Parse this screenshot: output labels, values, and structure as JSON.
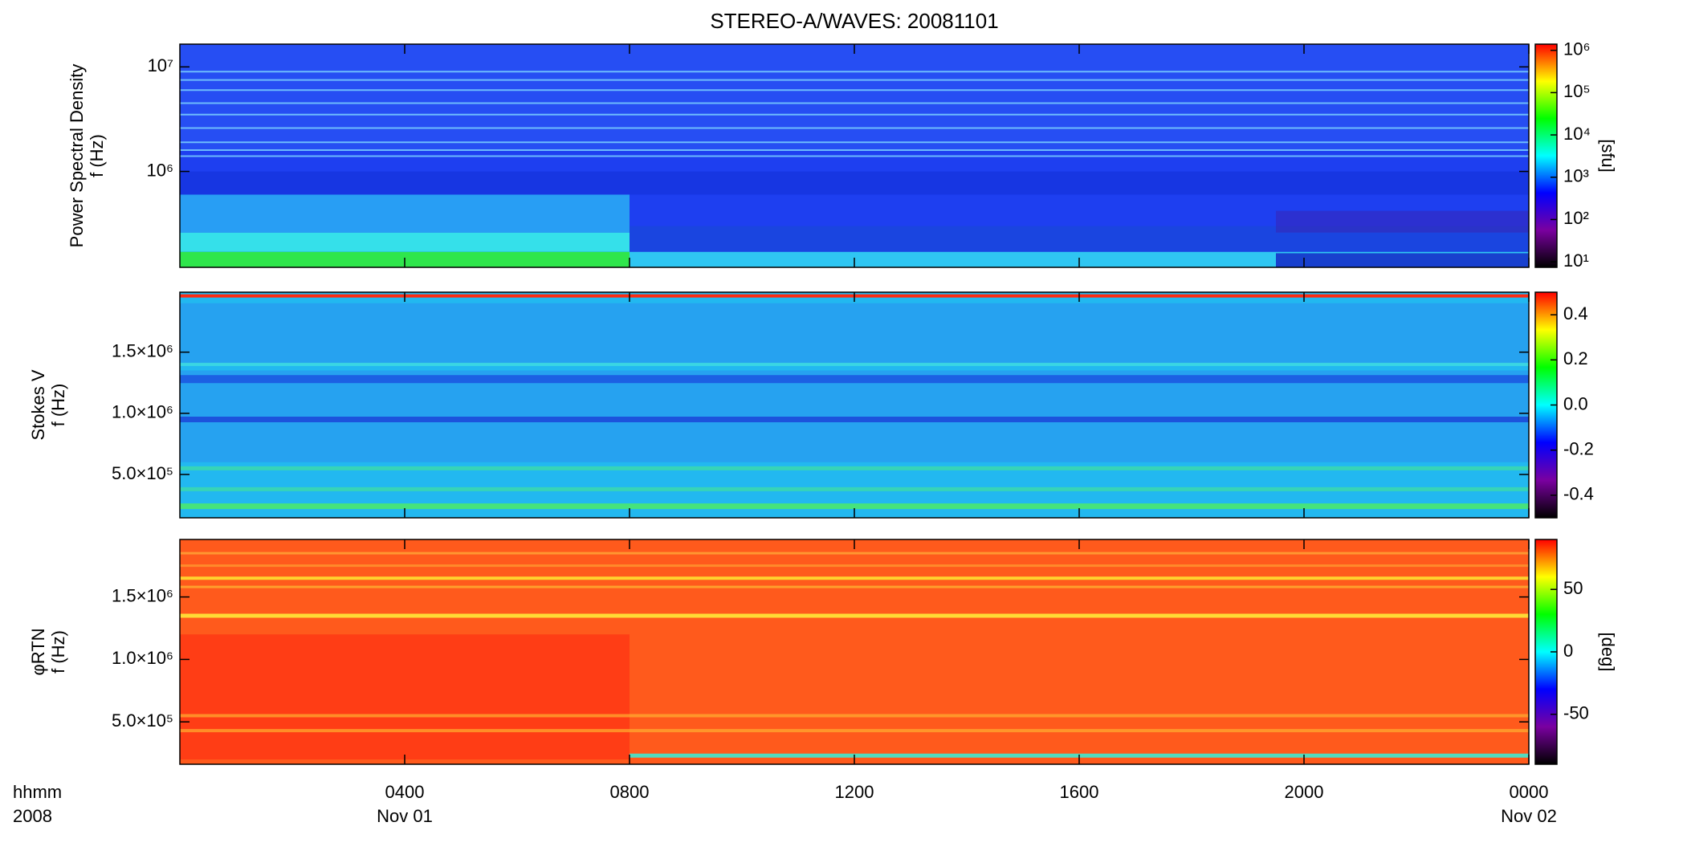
{
  "chart_data": [
    {
      "type": "heatmap",
      "title": "STEREO-A/WAVES: 20081101",
      "ylabel": [
        "Power Spectral Density",
        "f (Hz)"
      ],
      "ylog": true,
      "ylim": [
        121000,
        16500000
      ],
      "yticks": [
        {
          "value": 1000000,
          "label": "10⁶"
        },
        {
          "value": 10000000,
          "label": "10⁷"
        }
      ],
      "xlim": [
        0,
        24
      ],
      "xticks": [
        4,
        8,
        12,
        16,
        20,
        24
      ],
      "colormap": [
        "#000000",
        "#7a00a0",
        "#0000ff",
        "#00ffff",
        "#00ff00",
        "#ffff00",
        "#ff0000"
      ],
      "clog": true,
      "clim": [
        7.4,
        1400000
      ],
      "cticks": [
        {
          "value": 10,
          "label": "10¹"
        },
        {
          "value": 100,
          "label": "10²"
        },
        {
          "value": 1000,
          "label": "10³"
        },
        {
          "value": 10000,
          "label": "10⁴"
        },
        {
          "value": 100000,
          "label": "10⁵"
        },
        {
          "value": 1000000,
          "label": "10⁶"
        }
      ],
      "clabel": "[sfu]"
    },
    {
      "type": "heatmap",
      "ylabel": [
        "Stokes V",
        "f (Hz)"
      ],
      "ylog": false,
      "ylim": [
        146000,
        1990000
      ],
      "yticks": [
        {
          "value": 500000,
          "label": "5.0×10⁵"
        },
        {
          "value": 1000000,
          "label": "1.0×10⁶"
        },
        {
          "value": 1500000,
          "label": "1.5×10⁶"
        }
      ],
      "xlim": [
        0,
        24
      ],
      "xticks": [
        4,
        8,
        12,
        16,
        20,
        24
      ],
      "colormap": [
        "#000000",
        "#7a00a0",
        "#0000ff",
        "#00ffff",
        "#00ff00",
        "#ffff00",
        "#ff0000"
      ],
      "clog": false,
      "clim": [
        -0.5,
        0.5
      ],
      "cticks": [
        -0.4,
        -0.2,
        {
          "value": 0,
          "label": "0.0"
        },
        0.2,
        0.4
      ]
    },
    {
      "type": "heatmap",
      "ylabel": [
        "φRTN",
        "f (Hz)"
      ],
      "ylog": false,
      "ylim": [
        161000,
        1960000
      ],
      "yticks": [
        {
          "value": 500000,
          "label": "5.0×10⁵"
        },
        {
          "value": 1000000,
          "label": "1.0×10⁶"
        },
        {
          "value": 1500000,
          "label": "1.5×10⁶"
        }
      ],
      "xlim": [
        0,
        24
      ],
      "xticks": [
        {
          "value": 4,
          "label": "0400"
        },
        {
          "value": 8,
          "label": "0800"
        },
        {
          "value": 12,
          "label": "1200"
        },
        {
          "value": 16,
          "label": "1600"
        },
        {
          "value": 20,
          "label": "2000"
        },
        {
          "value": 24,
          "label": "0000"
        }
      ],
      "xtick_dates": [
        "Nov 01",
        null,
        null,
        null,
        null,
        "Nov 02"
      ],
      "xlabel": [
        "hhmm",
        "2008"
      ],
      "colormap": [
        "#000000",
        "#7a00a0",
        "#0000ff",
        "#00ffff",
        "#00ff00",
        "#ffff00",
        "#ff0000"
      ],
      "clog": false,
      "clim": [
        -90,
        90
      ],
      "cticks": [
        -50,
        0,
        50
      ],
      "clabel": "[deg]"
    }
  ]
}
